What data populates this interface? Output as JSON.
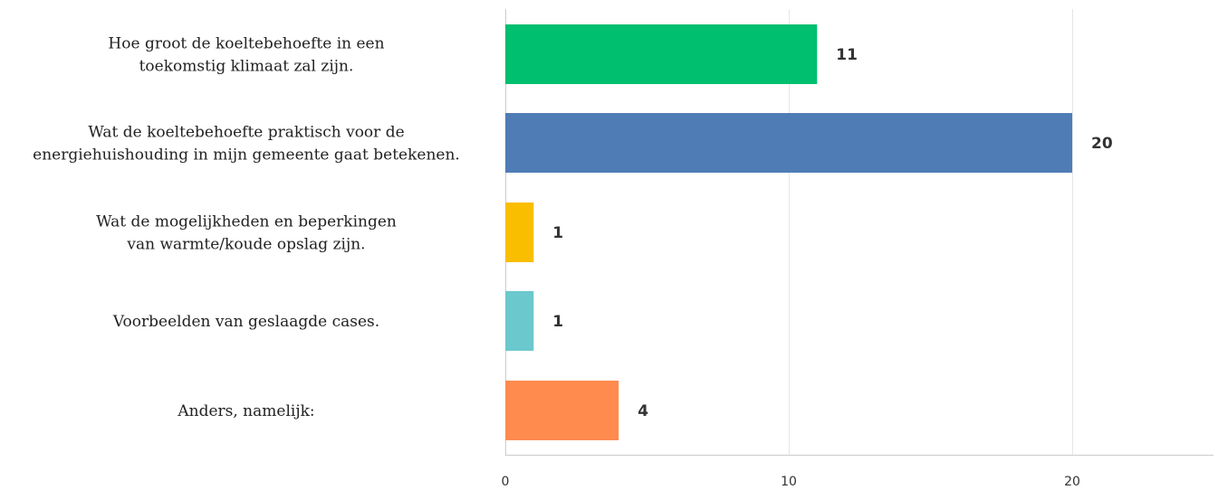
{
  "chart_data": {
    "type": "bar",
    "orientation": "horizontal",
    "categories": [
      [
        "Hoe groot de koeltebehoefte in een",
        "toekomstig klimaat zal zijn."
      ],
      [
        "Wat de koeltebehoefte praktisch voor de",
        "energiehuishouding in mijn gemeente gaat betekenen."
      ],
      [
        "Wat de mogelijkheden en beperkingen",
        "van warmte/koude opslag zijn."
      ],
      [
        "Voorbeelden van geslaagde cases."
      ],
      [
        "Anders, namelijk:"
      ]
    ],
    "values": [
      11,
      20,
      1,
      1,
      4
    ],
    "value_labels": [
      "11",
      "20",
      "1",
      "1",
      "4"
    ],
    "colors": [
      "#00bf6f",
      "#507cb6",
      "#f9be00",
      "#6bc8cd",
      "#ff8b4f"
    ],
    "xlim": [
      0,
      25
    ],
    "xticks": [
      0,
      10,
      20
    ],
    "xtick_labels": [
      "0",
      "10",
      "20"
    ],
    "grid": true,
    "title": "",
    "xlabel": "",
    "ylabel": ""
  }
}
